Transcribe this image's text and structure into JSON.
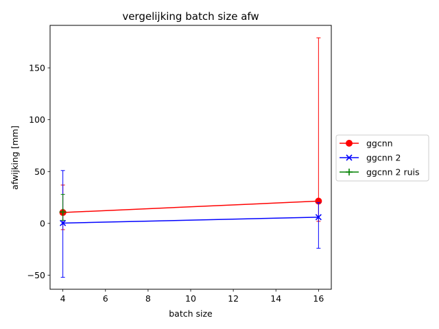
{
  "chart_data": {
    "type": "line",
    "title": "vergelijking batch size afw",
    "xlabel": "batch size",
    "ylabel": "afwijking [mm]",
    "xlim": [
      3.4,
      16.6
    ],
    "ylim": [
      -63.5,
      191
    ],
    "xticks": [
      4,
      6,
      8,
      10,
      12,
      14,
      16
    ],
    "xtick_labels": [
      "4",
      "6",
      "8",
      "10",
      "12",
      "14",
      "16"
    ],
    "yticks": [
      -50,
      0,
      50,
      100,
      150
    ],
    "ytick_labels": [
      "−50",
      "0",
      "50",
      "100",
      "150"
    ],
    "grid": false,
    "legend_position": "outside-right",
    "series": [
      {
        "name": "ggcnn",
        "color": "#ff0000",
        "marker": "circle",
        "points": [
          {
            "x": 4,
            "y": 10.5,
            "err_low": -6,
            "err_high": 37
          },
          {
            "x": 16,
            "y": 21.5,
            "err_low": 2,
            "err_high": 179
          }
        ]
      },
      {
        "name": "ggcnn 2",
        "color": "#0000ff",
        "marker": "x",
        "points": [
          {
            "x": 4,
            "y": 0.3,
            "err_low": -52,
            "err_high": 51
          },
          {
            "x": 16,
            "y": 6,
            "err_low": -24,
            "err_high": 20
          }
        ]
      },
      {
        "name": "ggcnn 2 ruis",
        "color": "#008000",
        "marker": "plus",
        "points": [
          {
            "x": 4,
            "y": 11,
            "err_low": 3,
            "err_high": 28
          }
        ]
      }
    ]
  }
}
